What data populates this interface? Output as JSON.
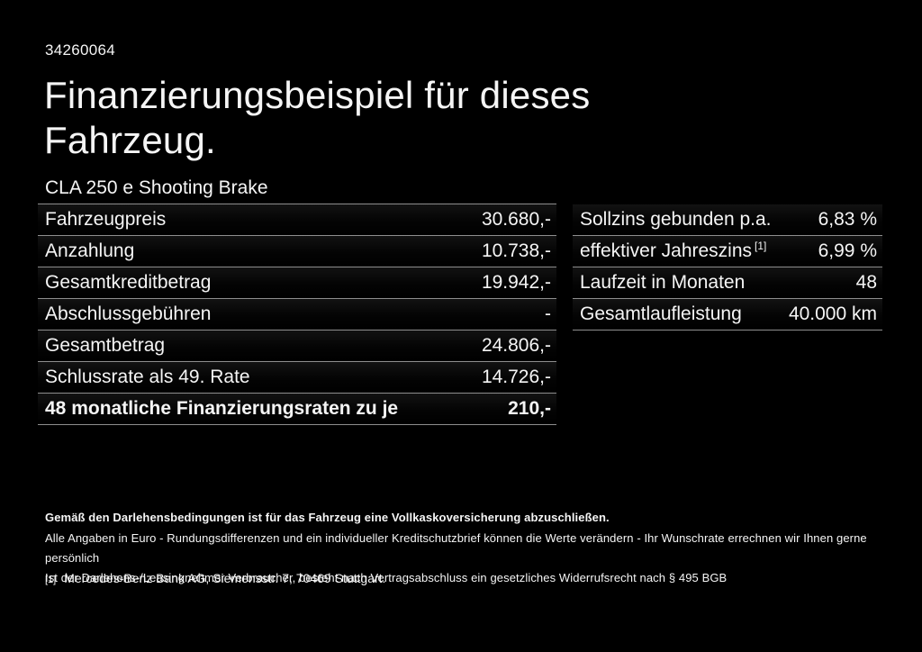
{
  "page": {
    "doc_id": "34260064",
    "title_line1": "Finanzierungsbeispiel für dieses",
    "title_line2": "Fahrzeug.",
    "vehicle_model": "CLA 250 e Shooting Brake"
  },
  "finance_table": {
    "rows": [
      {
        "label": "Fahrzeugpreis",
        "value": "30.680,-"
      },
      {
        "label": "Anzahlung",
        "value": "10.738,-"
      },
      {
        "label": "Gesamtkreditbetrag",
        "value": "19.942,-"
      },
      {
        "label": "Abschlussgebühren",
        "value": "-"
      },
      {
        "label": "Gesamtbetrag",
        "value": "24.806,-"
      },
      {
        "label": "Schlussrate als 49. Rate",
        "value": "14.726,-"
      },
      {
        "label": "48 monatliche Finanzierungsraten zu je",
        "value": "210,-"
      }
    ]
  },
  "conditions_table": {
    "rows": [
      {
        "label": "Sollzins gebunden p.a.",
        "sup": "",
        "value": "6,83 %"
      },
      {
        "label": "effektiver Jahreszins",
        "sup": "[1]",
        "value": "6,99 %"
      },
      {
        "label": "Laufzeit in Monaten",
        "sup": "",
        "value": "48"
      },
      {
        "label": "Gesamtlaufleistung",
        "sup": "",
        "value": "40.000 km"
      }
    ]
  },
  "disclaimer": {
    "bold_line": "Gemäß den Darlehensbedingungen ist für das Fahrzeug eine Vollkaskoversicherung abzuschließen.",
    "line2": "Alle Angaben in Euro - Rundungsdifferenzen und ein individueller Kreditschutzbrief können die Werte verändern - Ihr Wunschrate errechnen wir Ihnen gerne persönlich",
    "line3": "Ist der Darlehens-/Leasingnehmer Verbraucher, besteht nach Vertragsabschluss ein gesetzliches Widerrufsrecht nach § 495 BGB"
  },
  "footnote": {
    "marker": "[1]",
    "text": "Mercedes-Benz Bank AG, Siemensstr. 7, 70469 Stuttgart."
  },
  "colors": {
    "background": "#000000",
    "text": "#f5f5f5",
    "divider": "#8e8e8e"
  }
}
